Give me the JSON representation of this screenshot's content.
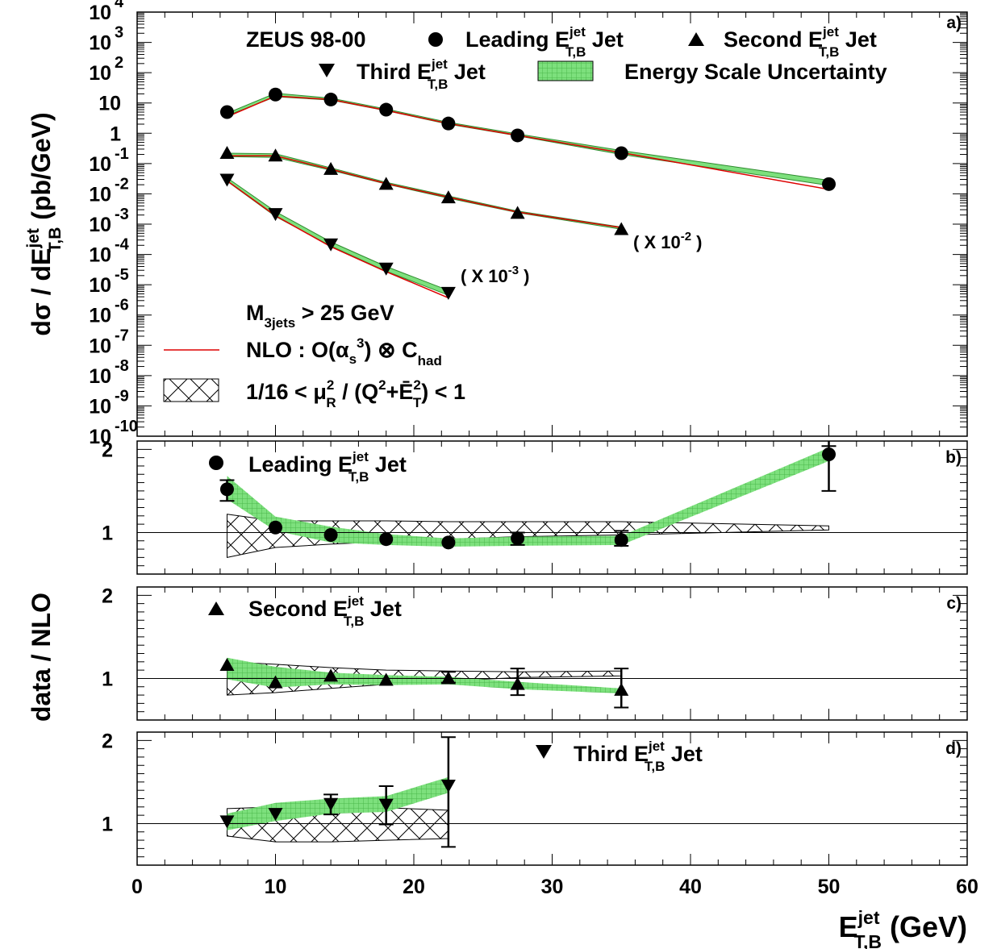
{
  "x_axis": {
    "label_main": "E",
    "label_sup": "jet",
    "label_sub": "T,B",
    "label_unit": " (GeV)",
    "ticks": [
      "0",
      "10",
      "20",
      "30",
      "40",
      "50",
      "60"
    ],
    "range": [
      0,
      60
    ]
  },
  "y_axis_top": {
    "label_pre": "dσ / dE",
    "label_sup": "jet",
    "label_sub": "T,B",
    "label_unit": " (pb/GeV)",
    "ticks": [
      {
        "base": "10",
        "exp": "4"
      },
      {
        "base": "10",
        "exp": "3"
      },
      {
        "base": "10",
        "exp": "2"
      },
      {
        "base": "10",
        "exp": ""
      },
      {
        "base": "1",
        "exp": ""
      },
      {
        "base": "10",
        "exp": "-1"
      },
      {
        "base": "10",
        "exp": "-2"
      },
      {
        "base": "10",
        "exp": "-3"
      },
      {
        "base": "10",
        "exp": "-4"
      },
      {
        "base": "10",
        "exp": "-5"
      },
      {
        "base": "10",
        "exp": "-6"
      },
      {
        "base": "10",
        "exp": "-7"
      },
      {
        "base": "10",
        "exp": "-8"
      },
      {
        "base": "10",
        "exp": "-9"
      },
      {
        "base": "10",
        "exp": "-10"
      }
    ]
  },
  "y_axis_ratio": {
    "label": "data / NLO",
    "ticks": [
      "1",
      "2"
    ],
    "range": [
      0.5,
      2.1
    ]
  },
  "panel_labels": {
    "a": "a)",
    "b": "b)",
    "c": "c)",
    "d": "d)"
  },
  "legend_top": {
    "zeus": "ZEUS 98-00",
    "leading": {
      "pre": "Leading E",
      "sup": "jet",
      "sub": "T,B",
      "post": " Jet"
    },
    "second": {
      "pre": "Second E",
      "sup": "jet",
      "sub": "T,B",
      "post": " Jet"
    },
    "third": {
      "pre": "Third E",
      "sup": "jet",
      "sub": "T,B",
      "post": " Jet"
    },
    "escale": "Energy Scale Uncertainty"
  },
  "annotations": {
    "mass_cut": {
      "pre": "M",
      "sub": "3jets",
      "post": " > 25 GeV"
    },
    "nlo": {
      "a": "NLO : O(α",
      "b": "s",
      "c": "3",
      "d": ") ⊗ C",
      "e": "had"
    },
    "scale": {
      "a": "1/16 < μ",
      "b": "R",
      "c": "2",
      "d": " / (Q",
      "e": "2",
      "f": "+Ē",
      "g": "T",
      "h": "2",
      "i": ") < 1"
    },
    "scale_second": {
      "pre": "( X 10",
      "sup": "-2",
      "post": " )"
    },
    "scale_third": {
      "pre": "( X 10",
      "sup": "-3",
      "post": " )"
    }
  },
  "colors": {
    "band": "#7de07d",
    "nlo_line": "#dd0000",
    "hatch": "#000000"
  },
  "chart_data": {
    "type": "scatter",
    "panel_a": {
      "y_scale": "log",
      "ylim": [
        1e-10,
        10000
      ],
      "series": [
        {
          "name": "Leading E_T,B jet Jet",
          "marker": "circle",
          "x": [
            6.5,
            10,
            14,
            18,
            22.5,
            27.5,
            35,
            50
          ],
          "y": [
            5.0,
            19,
            13,
            6.0,
            2.1,
            0.85,
            0.22,
            0.021
          ],
          "nlo": [
            3.5,
            17,
            13,
            5.7,
            2.1,
            0.85,
            0.23,
            0.014
          ],
          "band_lo": [
            3.8,
            16,
            12.5,
            5.6,
            2.0,
            0.82,
            0.2,
            0.019
          ],
          "band_hi": [
            4.6,
            21,
            14.5,
            6.3,
            2.3,
            0.95,
            0.27,
            0.028
          ]
        },
        {
          "name": "Second E_T,B jet Jet (x 10^-2)",
          "marker": "triangle-up",
          "x": [
            6.5,
            10,
            14,
            18,
            22.5,
            27.5,
            35
          ],
          "y": [
            0.22,
            0.18,
            0.065,
            0.021,
            0.0075,
            0.0023,
            0.00067
          ],
          "nlo": [
            0.18,
            0.18,
            0.065,
            0.022,
            0.0078,
            0.0025,
            0.00077
          ],
          "band_lo": [
            0.17,
            0.16,
            0.06,
            0.021,
            0.0072,
            0.0024,
            0.00068
          ],
          "band_hi": [
            0.22,
            0.21,
            0.072,
            0.024,
            0.0085,
            0.0027,
            0.0008
          ]
        },
        {
          "name": "Third E_T,B jet Jet (x 10^-3)",
          "marker": "triangle-down",
          "x": [
            6.5,
            10,
            14,
            18,
            22.5
          ],
          "y": [
            0.03,
            0.0022,
            0.00022,
            3.5e-05,
            5.5e-06
          ],
          "nlo": [
            0.027,
            0.0019,
            0.00018,
            2.7e-05,
            3.7e-06
          ],
          "band_lo": [
            0.026,
            0.0018,
            0.00019,
            2.8e-05,
            4.5e-06
          ],
          "band_hi": [
            0.034,
            0.0026,
            0.00026,
            4e-05,
            6.5e-06
          ]
        }
      ]
    },
    "panel_b": {
      "x": [
        6.5,
        10,
        14,
        18,
        22.5,
        27.5,
        35,
        50
      ],
      "ratio": [
        1.52,
        1.06,
        0.97,
        0.92,
        0.88,
        0.93,
        0.91,
        1.94
      ],
      "err_lo": [
        1.38,
        1.06,
        0.97,
        0.92,
        0.88,
        0.85,
        0.84,
        1.5
      ],
      "err_hi": [
        1.63,
        1.06,
        0.97,
        0.92,
        0.88,
        1.0,
        1.02,
        2.1
      ],
      "band_lo": [
        1.4,
        1.02,
        0.88,
        0.85,
        0.83,
        0.84,
        0.85,
        1.86
      ],
      "band_hi": [
        1.68,
        1.19,
        1.07,
        0.98,
        0.93,
        0.95,
        0.96,
        2.02
      ],
      "hatch_x": [
        6.5,
        10,
        14,
        18,
        22.5,
        27.5,
        35,
        50
      ],
      "hatch_lo": [
        0.7,
        0.82,
        0.86,
        0.89,
        0.92,
        0.95,
        0.97,
        1.03
      ],
      "hatch_hi": [
        1.22,
        1.14,
        1.14,
        1.14,
        1.13,
        1.13,
        1.13,
        1.08
      ]
    },
    "panel_c": {
      "x": [
        6.5,
        10,
        14,
        18,
        22.5,
        27.5,
        35
      ],
      "ratio": [
        1.16,
        0.95,
        1.03,
        0.98,
        1.0,
        0.93,
        0.86
      ],
      "err_lo": [
        1.16,
        0.95,
        1.03,
        0.98,
        0.95,
        0.8,
        0.65
      ],
      "err_hi": [
        1.16,
        0.95,
        1.03,
        0.98,
        1.08,
        1.12,
        1.12
      ],
      "band_lo": [
        0.99,
        0.89,
        0.93,
        0.92,
        0.93,
        0.87,
        0.82
      ],
      "band_hi": [
        1.25,
        1.14,
        1.07,
        1.04,
        1.02,
        0.96,
        0.88
      ],
      "hatch_x": [
        6.5,
        10,
        14,
        18,
        22.5,
        27.5,
        35
      ],
      "hatch_lo": [
        0.8,
        0.83,
        0.88,
        0.93,
        0.97,
        1.01,
        1.03
      ],
      "hatch_hi": [
        1.2,
        1.17,
        1.13,
        1.1,
        1.09,
        1.08,
        1.09
      ]
    },
    "panel_d": {
      "x": [
        6.5,
        10,
        14,
        18,
        22.5
      ],
      "ratio": [
        1.03,
        1.12,
        1.24,
        1.23,
        1.46
      ],
      "err_lo": [
        1.03,
        1.12,
        1.11,
        0.99,
        0.72
      ],
      "err_hi": [
        1.03,
        1.12,
        1.35,
        1.45,
        2.04
      ],
      "band_lo": [
        0.92,
        1.03,
        1.12,
        1.14,
        1.37
      ],
      "band_hi": [
        1.12,
        1.25,
        1.3,
        1.33,
        1.56
      ],
      "hatch_x": [
        6.5,
        10,
        14,
        18,
        22.5
      ],
      "hatch_lo": [
        0.85,
        0.78,
        0.78,
        0.8,
        0.82
      ],
      "hatch_hi": [
        1.18,
        1.2,
        1.2,
        1.19,
        1.16
      ]
    }
  }
}
